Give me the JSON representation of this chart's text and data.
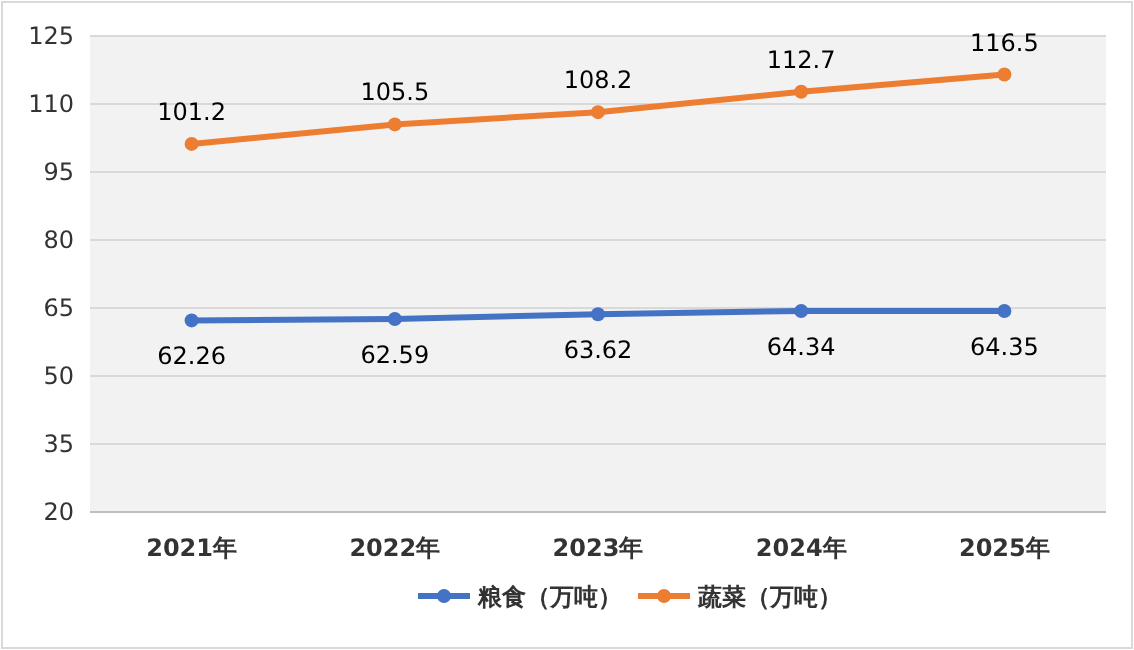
{
  "chart_data": {
    "type": "line",
    "categories": [
      "2021年",
      "2022年",
      "2023年",
      "2024年",
      "2025年"
    ],
    "series": [
      {
        "name": "粮食（万吨）",
        "color": "#4472c4",
        "values": [
          62.26,
          62.59,
          63.62,
          64.34,
          64.35
        ]
      },
      {
        "name": "蔬菜（万吨）",
        "color": "#ed7d31",
        "values": [
          101.2,
          105.5,
          108.2,
          112.7,
          116.5
        ]
      }
    ],
    "ylim": [
      20,
      125
    ],
    "yticks": [
      20,
      35,
      50,
      65,
      80,
      95,
      110,
      125
    ],
    "grid": "y",
    "legend": "bottom",
    "marker": "circle",
    "data_labels": true
  }
}
